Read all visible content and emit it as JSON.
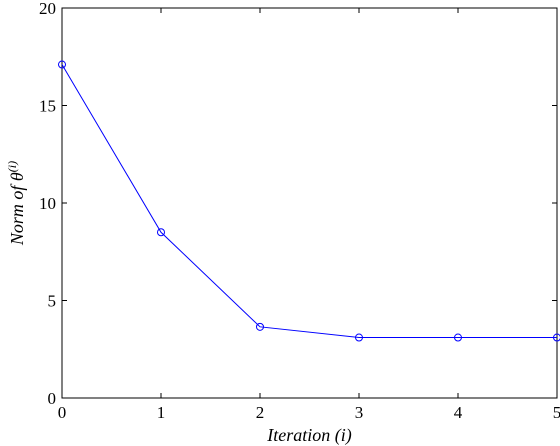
{
  "chart_data": {
    "type": "line",
    "title": "",
    "xlabel": "Iteration (i)",
    "ylabel": {
      "prefix": "Norm of ",
      "symbol": "θ",
      "superscript": "(i)"
    },
    "xlim": [
      0,
      5
    ],
    "ylim": [
      0,
      20
    ],
    "xticks": [
      "0",
      "1",
      "2",
      "3",
      "4",
      "5"
    ],
    "yticks": [
      "0",
      "5",
      "10",
      "15",
      "20"
    ],
    "grid": false,
    "legend": "none",
    "series": [
      {
        "x": [
          0,
          1,
          2,
          3,
          4,
          5
        ],
        "values": [
          17.1,
          8.5,
          3.65,
          3.1,
          3.1,
          3.1
        ],
        "color": "#0000ff",
        "marker": "circle"
      }
    ]
  }
}
